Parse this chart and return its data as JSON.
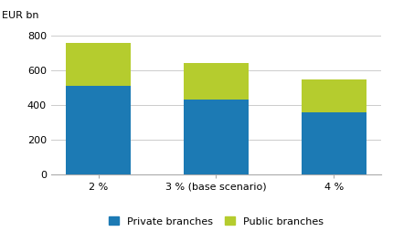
{
  "categories": [
    "2 %",
    "3 % (base scenario)",
    "4 %"
  ],
  "private_values": [
    510,
    430,
    360
  ],
  "public_values": [
    250,
    215,
    190
  ],
  "private_color": "#1c7ab4",
  "public_color": "#b5cc2e",
  "ylabel": "EUR bn",
  "ylim": [
    0,
    840
  ],
  "yticks": [
    0,
    200,
    400,
    600,
    800
  ],
  "legend_labels": [
    "Private branches",
    "Public branches"
  ],
  "bar_width": 0.55,
  "background_color": "#ffffff",
  "grid_color": "#cccccc",
  "tick_fontsize": 8.0,
  "legend_fontsize": 8.0
}
